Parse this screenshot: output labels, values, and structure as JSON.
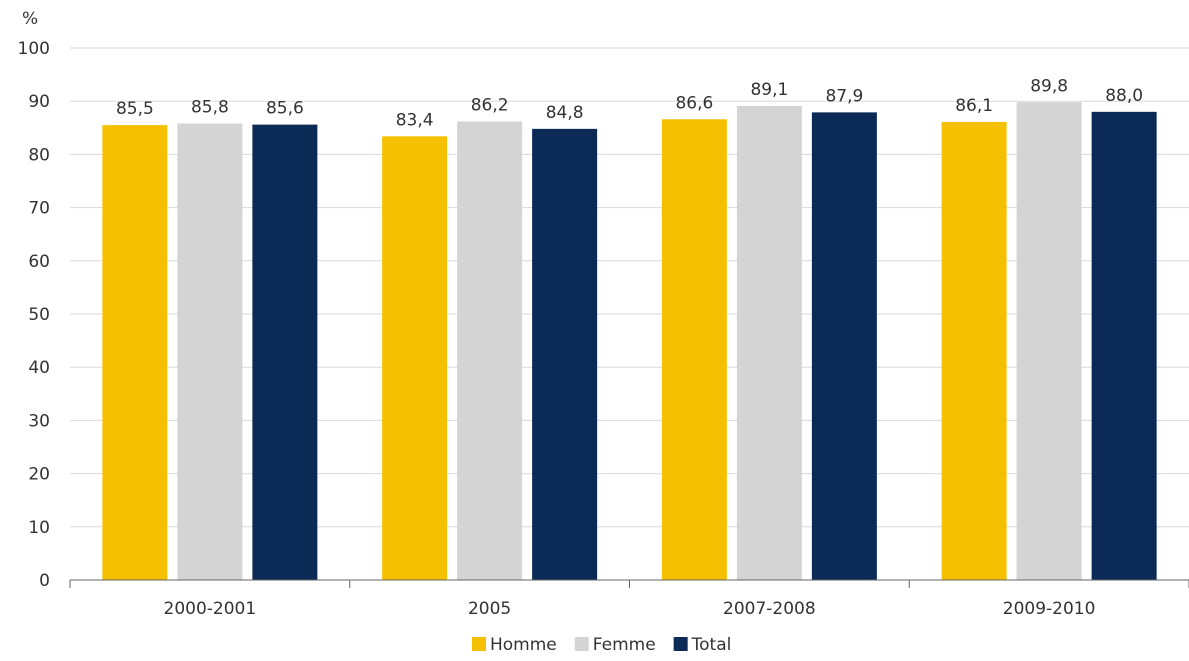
{
  "chart_data": {
    "type": "bar",
    "unit_label": "%",
    "categories": [
      "2000-2001",
      "2005",
      "2007-2008",
      "2009-2010"
    ],
    "series": [
      {
        "name": "Homme",
        "color": "#F5C000",
        "values": [
          85.5,
          83.4,
          86.6,
          86.1
        ],
        "labels": [
          "85,5",
          "83,4",
          "86,6",
          "86,1"
        ]
      },
      {
        "name": "Femme",
        "color": "#D4D4D4",
        "values": [
          85.8,
          86.2,
          89.1,
          89.8
        ],
        "labels": [
          "85,8",
          "86,2",
          "89,1",
          "89,8"
        ]
      },
      {
        "name": "Total",
        "color": "#0B2A55",
        "values": [
          85.6,
          84.8,
          87.9,
          88.0
        ],
        "labels": [
          "85,6",
          "84,8",
          "87,9",
          "88,0"
        ]
      }
    ],
    "ylim": [
      0,
      100
    ],
    "yticks": [
      0,
      10,
      20,
      30,
      40,
      50,
      60,
      70,
      80,
      90,
      100
    ],
    "grid": true,
    "legend_position": "bottom-center"
  }
}
